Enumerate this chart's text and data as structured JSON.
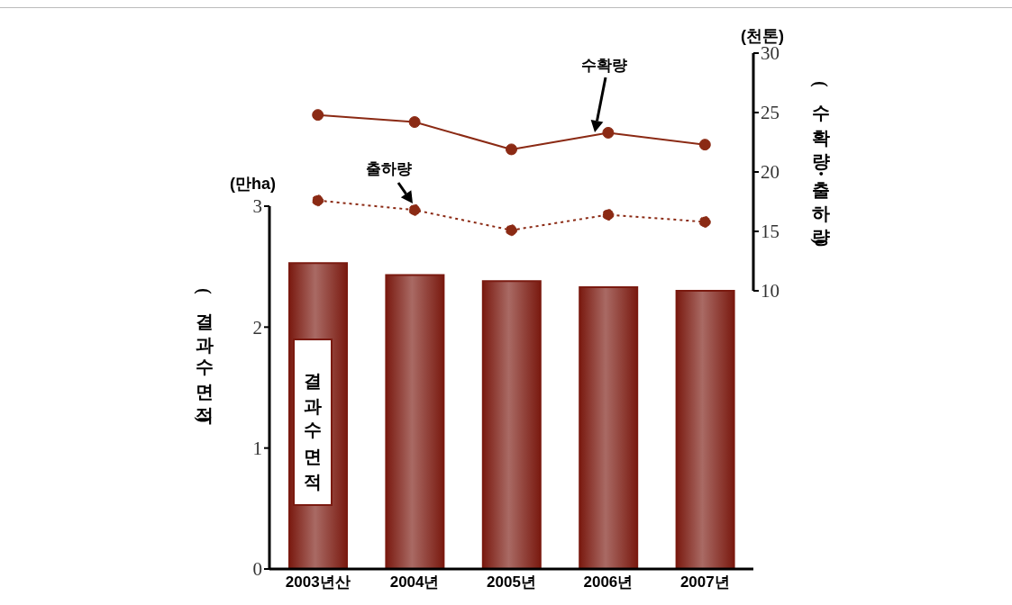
{
  "chart_data": [
    {
      "type": "line",
      "categories": [
        null,
        null,
        null,
        null,
        null
      ],
      "tick_labels": "y",
      "ylabel": "(수확량・출하량)",
      "annotations": [
        "(천톤)"
      ],
      "ylim": [
        10,
        30
      ],
      "yticks": [
        10,
        15,
        20,
        25,
        30
      ],
      "legend": false,
      "series": [
        {
          "name": "수확량",
          "color": "#8b2a14",
          "marker": "circle",
          "line_style": "solid",
          "values": [
            24.8,
            24.2,
            21.9,
            23.3,
            22.3
          ]
        },
        {
          "name": "출하량",
          "color": "#8b2a14",
          "marker": "circle",
          "line_style": "dotted",
          "values": [
            17.6,
            16.8,
            15.1,
            16.4,
            15.8
          ]
        }
      ]
    },
    {
      "type": "bar",
      "categories": [
        "2003년산",
        "2004년",
        "2005년",
        "2006년",
        "2007년"
      ],
      "ylabel": "(결과수면적)",
      "annotations": [
        "(만ha)"
      ],
      "ylim": [
        0,
        3
      ],
      "yticks": [
        0,
        1,
        2,
        3
      ],
      "legend": false,
      "series": [
        {
          "name": "결과수면적",
          "color": "#7a1a10",
          "values": [
            2.53,
            2.43,
            2.38,
            2.33,
            2.3
          ]
        }
      ]
    }
  ]
}
